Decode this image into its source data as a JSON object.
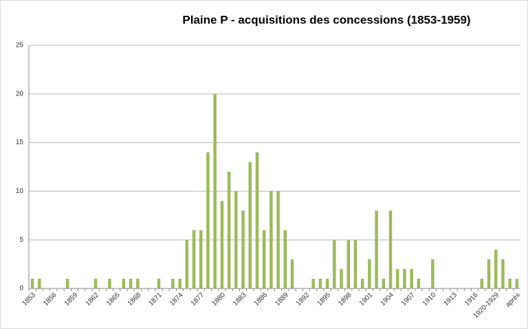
{
  "chart_data": {
    "type": "bar",
    "title": "Plaine P - acquisitions des concessions (1853-1959)",
    "categories": [
      "1853",
      null,
      null,
      "1856",
      null,
      null,
      "1859",
      null,
      null,
      "1862",
      null,
      null,
      "1865",
      null,
      null,
      "1868",
      null,
      null,
      "1871",
      null,
      null,
      "1874",
      null,
      null,
      "1877",
      null,
      null,
      "1880",
      null,
      null,
      "1883",
      null,
      null,
      "1886",
      null,
      null,
      "1889",
      null,
      null,
      "1892",
      null,
      null,
      "1895",
      null,
      null,
      "1898",
      null,
      null,
      "1901",
      null,
      null,
      "1904",
      null,
      null,
      "1907",
      null,
      null,
      "1910",
      null,
      null,
      "1913",
      null,
      null,
      "1916",
      null,
      null,
      "1920-1929",
      null,
      null,
      "après"
    ],
    "values": [
      1,
      1,
      0,
      0,
      0,
      1,
      0,
      0,
      0,
      1,
      0,
      1,
      0,
      1,
      1,
      1,
      0,
      0,
      1,
      0,
      1,
      1,
      5,
      6,
      6,
      14,
      20,
      9,
      12,
      10,
      8,
      13,
      14,
      6,
      10,
      10,
      6,
      3,
      0,
      0,
      1,
      1,
      1,
      5,
      2,
      5,
      5,
      1,
      3,
      8,
      1,
      8,
      2,
      2,
      2,
      1,
      0,
      3,
      0,
      0,
      0,
      0,
      0,
      0,
      1,
      3,
      4,
      3,
      1,
      1
    ],
    "color": "#9bbb59",
    "ylim": [
      0,
      25
    ],
    "yticks": [
      0,
      5,
      10,
      15,
      20,
      25
    ],
    "grid": true
  }
}
